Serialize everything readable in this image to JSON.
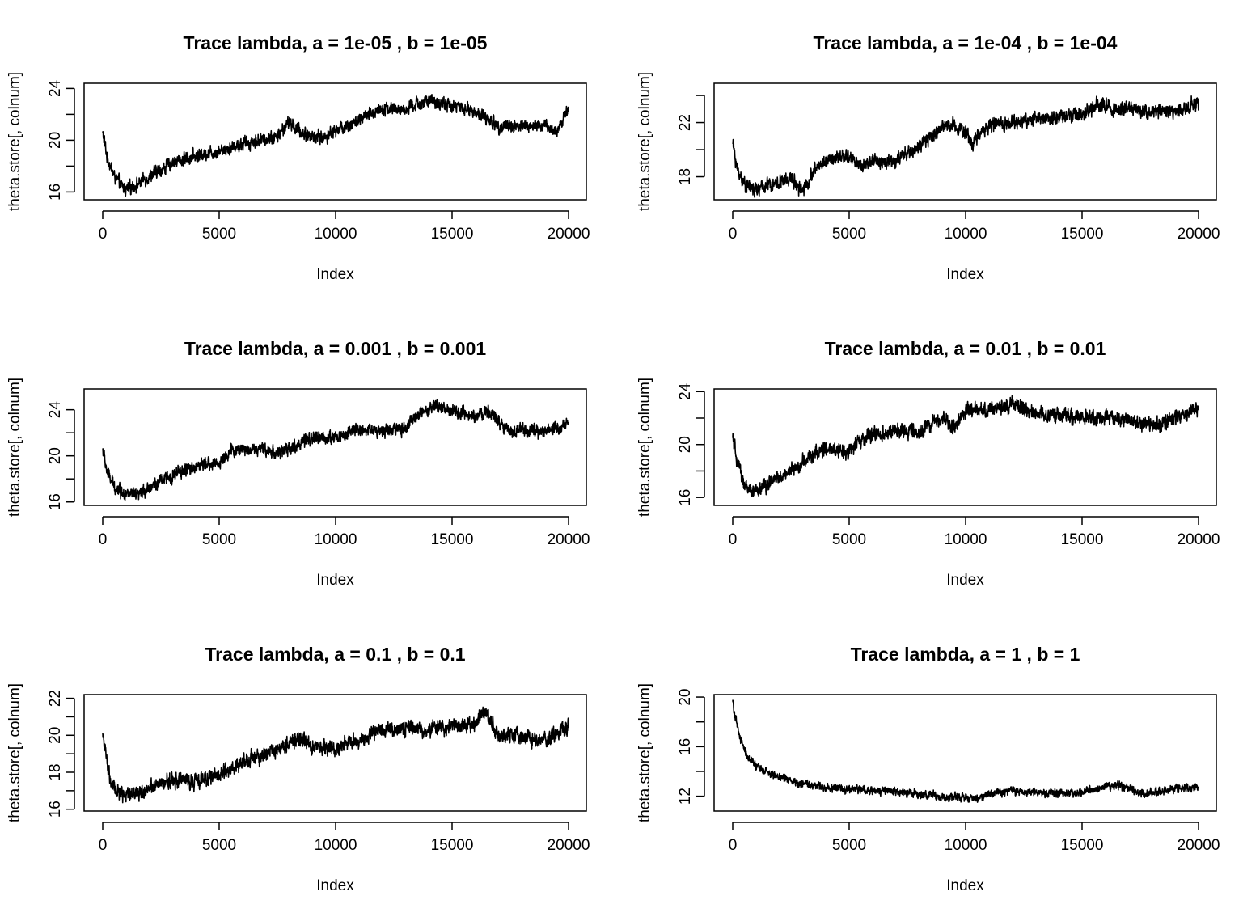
{
  "chart_data": [
    {
      "type": "line",
      "title": "Trace lambda, a = 1e-05 , b = 1e-05",
      "xlabel": "Index",
      "ylabel": "theta.store[, colnum]",
      "xlim": [
        0,
        20000
      ],
      "ylim": [
        15.4,
        24.4
      ],
      "xticks": [
        0,
        5000,
        10000,
        15000,
        20000
      ],
      "yticks": [
        16,
        18,
        20,
        22,
        24
      ],
      "yticklabels": [
        "16",
        "",
        "20",
        "",
        "24"
      ],
      "series": [
        {
          "x": [
            0,
            200,
            500,
            800,
            1000,
            1500,
            2000,
            2500,
            3000,
            4000,
            5000,
            6000,
            7000,
            7500,
            8000,
            8500,
            9000,
            9500,
            10000,
            11000,
            12000,
            13000,
            13500,
            14000,
            15000,
            16000,
            17000,
            18000,
            19000,
            19500,
            20000
          ],
          "y": [
            20.6,
            18.6,
            17.2,
            16.5,
            16.2,
            16.6,
            17.2,
            17.7,
            18.3,
            18.8,
            19.2,
            19.7,
            20.1,
            20.3,
            21.4,
            20.6,
            20.3,
            20.2,
            20.8,
            21.5,
            22.5,
            22.3,
            22.8,
            23.0,
            22.7,
            22.2,
            21.1,
            21.1,
            21.1,
            20.6,
            22.6
          ]
        }
      ],
      "noise": 0.55
    },
    {
      "type": "line",
      "title": "Trace lambda, a = 1e-04 , b = 1e-04",
      "xlabel": "Index",
      "ylabel": "theta.store[, colnum]",
      "xlim": [
        0,
        20000
      ],
      "ylim": [
        16.3,
        24.9
      ],
      "xticks": [
        0,
        5000,
        10000,
        15000,
        20000
      ],
      "yticks": [
        18,
        20,
        22,
        24
      ],
      "yticklabels": [
        "18",
        "",
        "22",
        ""
      ],
      "series": [
        {
          "x": [
            0,
            200,
            500,
            1000,
            1500,
            2000,
            2500,
            3000,
            3300,
            3600,
            4000,
            4500,
            5000,
            5500,
            6000,
            7000,
            8000,
            9000,
            9500,
            10000,
            10300,
            10700,
            11000,
            12000,
            13000,
            14000,
            15000,
            15800,
            16500,
            17000,
            18000,
            19000,
            20000
          ],
          "y": [
            20.5,
            18.5,
            17.5,
            17.0,
            17.4,
            17.6,
            17.9,
            17.0,
            17.8,
            18.7,
            19.2,
            19.4,
            19.5,
            18.8,
            19.1,
            19.2,
            20.2,
            21.7,
            21.9,
            21.3,
            20.4,
            21.4,
            21.8,
            22.0,
            22.3,
            22.4,
            22.6,
            23.4,
            22.9,
            23.0,
            22.8,
            22.8,
            23.4
          ]
        }
      ],
      "noise": 0.55
    },
    {
      "type": "line",
      "title": "Trace lambda, a = 0.001 , b = 0.001",
      "xlabel": "Index",
      "ylabel": "theta.store[, colnum]",
      "xlim": [
        0,
        20000
      ],
      "ylim": [
        15.7,
        25.8
      ],
      "xticks": [
        0,
        5000,
        10000,
        15000,
        20000
      ],
      "yticks": [
        16,
        18,
        20,
        22,
        24
      ],
      "yticklabels": [
        "16",
        "",
        "20",
        "",
        "24"
      ],
      "series": [
        {
          "x": [
            0,
            200,
            500,
            1000,
            1500,
            2000,
            3000,
            4000,
            5000,
            5500,
            6000,
            7000,
            7500,
            8000,
            9000,
            10000,
            11000,
            12000,
            13000,
            13500,
            14000,
            14300,
            15000,
            16000,
            16500,
            17000,
            17500,
            18000,
            19000,
            20000
          ],
          "y": [
            20.5,
            18.5,
            17.3,
            16.7,
            16.5,
            17.3,
            18.3,
            19.1,
            19.4,
            20.4,
            20.6,
            20.6,
            20.2,
            20.6,
            21.5,
            21.6,
            22.3,
            22.2,
            22.4,
            23.5,
            23.8,
            24.4,
            23.8,
            23.4,
            23.9,
            23.1,
            22.1,
            22.3,
            22.0,
            22.9
          ]
        }
      ],
      "noise": 0.6
    },
    {
      "type": "line",
      "title": "Trace lambda, a = 0.01 , b = 0.01",
      "xlabel": "Index",
      "ylabel": "theta.store[, colnum]",
      "xlim": [
        0,
        20000
      ],
      "ylim": [
        15.4,
        24.2
      ],
      "xticks": [
        0,
        5000,
        10000,
        15000,
        20000
      ],
      "yticks": [
        16,
        18,
        20,
        22,
        24
      ],
      "yticklabels": [
        "16",
        "",
        "20",
        "",
        "24"
      ],
      "series": [
        {
          "x": [
            0,
            200,
            500,
            800,
            1000,
            1500,
            2000,
            3000,
            3500,
            4000,
            5000,
            5500,
            6000,
            7000,
            8000,
            8500,
            9000,
            9500,
            10000,
            11000,
            12000,
            13000,
            14000,
            15000,
            16000,
            17000,
            18000,
            18500,
            19000,
            20000
          ],
          "y": [
            20.5,
            18.6,
            17.0,
            16.3,
            16.5,
            17.0,
            17.5,
            18.6,
            19.3,
            19.6,
            19.5,
            20.3,
            20.7,
            21.0,
            20.9,
            21.5,
            22.0,
            21.4,
            22.5,
            22.6,
            23.1,
            22.3,
            22.2,
            22.1,
            22.1,
            21.8,
            21.5,
            21.6,
            22.0,
            22.7
          ]
        }
      ],
      "noise": 0.6
    },
    {
      "type": "line",
      "title": "Trace lambda, a = 0.1 , b = 0.1",
      "xlabel": "Index",
      "ylabel": "theta.store[, colnum]",
      "xlim": [
        0,
        20000
      ],
      "ylim": [
        15.9,
        22.2
      ],
      "xticks": [
        0,
        5000,
        10000,
        15000,
        20000
      ],
      "yticks": [
        16,
        17,
        18,
        19,
        20,
        21,
        22
      ],
      "yticklabels": [
        "16",
        "",
        "18",
        "",
        "20",
        "",
        "22"
      ],
      "series": [
        {
          "x": [
            0,
            200,
            400,
            700,
            1000,
            1500,
            2000,
            3000,
            4000,
            5000,
            6000,
            7000,
            8000,
            8500,
            9000,
            9500,
            10000,
            11000,
            12000,
            13000,
            14000,
            15000,
            16000,
            16500,
            17000,
            17500,
            18000,
            19000,
            20000
          ],
          "y": [
            20.2,
            18.3,
            17.2,
            16.9,
            16.8,
            16.9,
            17.1,
            17.6,
            17.5,
            17.9,
            18.5,
            19.0,
            19.6,
            19.8,
            19.4,
            19.3,
            19.3,
            19.8,
            20.3,
            20.4,
            20.3,
            20.5,
            20.7,
            21.2,
            19.9,
            20.1,
            19.8,
            19.7,
            20.5
          ]
        }
      ],
      "noise": 0.45
    },
    {
      "type": "line",
      "title": "Trace lambda, a = 1 , b = 1",
      "xlabel": "Index",
      "ylabel": "theta.store[, colnum]",
      "xlim": [
        0,
        20000
      ],
      "ylim": [
        10.8,
        20.2
      ],
      "xticks": [
        0,
        5000,
        10000,
        15000,
        20000
      ],
      "yticks": [
        12,
        14,
        16,
        18,
        20
      ],
      "yticklabels": [
        "12",
        "",
        "16",
        "",
        "20"
      ],
      "series": [
        {
          "x": [
            0,
            100,
            300,
            600,
            1000,
            1500,
            2000,
            3000,
            4000,
            5000,
            6000,
            7000,
            8000,
            9000,
            10000,
            10500,
            11000,
            12000,
            13000,
            14000,
            15000,
            16000,
            16500,
            17000,
            17500,
            18000,
            19000,
            20000
          ],
          "y": [
            19.8,
            18.4,
            16.8,
            15.3,
            14.4,
            13.9,
            13.6,
            13.0,
            12.7,
            12.6,
            12.5,
            12.3,
            12.2,
            11.9,
            11.9,
            11.8,
            12.2,
            12.4,
            12.3,
            12.2,
            12.3,
            12.8,
            12.9,
            12.7,
            12.2,
            12.3,
            12.6,
            12.7
          ]
        }
      ],
      "noise": 0.35
    }
  ]
}
